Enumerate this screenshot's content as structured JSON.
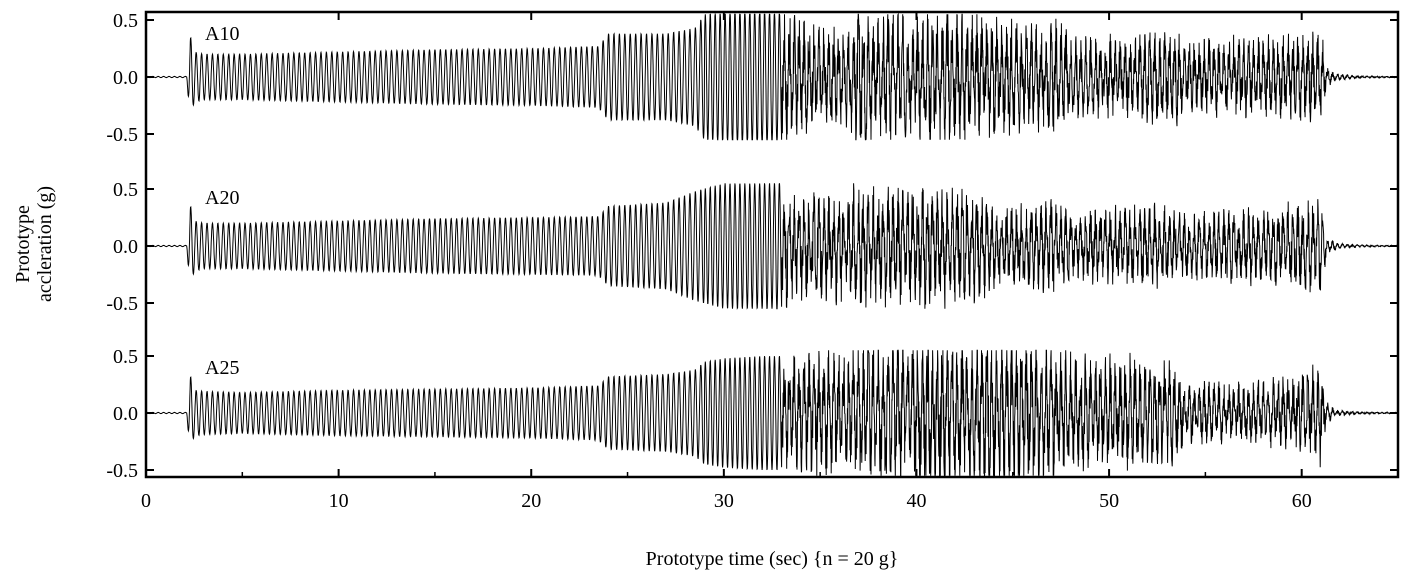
{
  "chart_data": {
    "type": "line",
    "xlabel": "Prototype time (sec) {n = 20 g}",
    "ylabel_lines": [
      "Prototype",
      "accleration (g)"
    ],
    "xlim": [
      0,
      65
    ],
    "x_ticks": [
      "0",
      "10",
      "20",
      "30",
      "40",
      "50",
      "60"
    ],
    "y_ticks": [
      "0.5",
      "0.0",
      "-0.5"
    ],
    "ylim_per_panel": [
      -0.55,
      0.55
    ],
    "grid": false,
    "series": [
      {
        "name": "A10",
        "envelope_t": [
          0,
          2.1,
          2.3,
          2.5,
          3,
          5,
          10,
          15,
          20,
          23.5,
          24,
          27,
          28.5,
          29,
          30,
          31,
          32,
          33,
          33.5,
          34,
          35,
          36.5,
          37,
          38,
          39,
          40,
          41,
          42,
          43,
          44,
          45,
          46,
          47,
          47.5,
          48,
          50,
          52,
          53.5,
          54,
          56,
          58,
          60,
          61,
          61.3,
          61.8,
          63,
          65
        ],
        "envelope_amp": [
          0.005,
          0.005,
          0.36,
          0.22,
          0.2,
          0.2,
          0.22,
          0.24,
          0.25,
          0.27,
          0.38,
          0.38,
          0.43,
          0.55,
          0.58,
          0.6,
          0.6,
          0.58,
          0.7,
          0.52,
          0.48,
          0.48,
          0.7,
          0.58,
          0.6,
          0.58,
          0.65,
          0.62,
          0.58,
          0.55,
          0.55,
          0.5,
          0.5,
          0.55,
          0.38,
          0.38,
          0.42,
          0.44,
          0.33,
          0.38,
          0.38,
          0.42,
          0.45,
          0.1,
          0.03,
          0.01,
          0.005
        ]
      },
      {
        "name": "A20",
        "envelope_t": [
          0,
          2.1,
          2.3,
          2.5,
          3,
          5,
          10,
          15,
          20,
          23.5,
          24,
          27,
          28.5,
          30,
          32,
          33,
          33.5,
          34,
          35,
          36.5,
          37,
          38,
          39,
          40,
          41,
          42,
          43,
          44,
          45,
          46,
          47,
          48,
          50,
          52,
          53.5,
          54,
          56,
          57,
          58,
          60,
          61,
          61.3,
          61.8,
          63,
          65
        ],
        "envelope_amp": [
          0.005,
          0.005,
          0.36,
          0.22,
          0.2,
          0.2,
          0.22,
          0.24,
          0.25,
          0.26,
          0.35,
          0.38,
          0.48,
          0.55,
          0.55,
          0.56,
          0.58,
          0.5,
          0.5,
          0.55,
          0.58,
          0.55,
          0.55,
          0.56,
          0.6,
          0.55,
          0.52,
          0.45,
          0.38,
          0.4,
          0.45,
          0.35,
          0.38,
          0.4,
          0.35,
          0.3,
          0.35,
          0.38,
          0.35,
          0.42,
          0.45,
          0.1,
          0.03,
          0.01,
          0.005
        ]
      },
      {
        "name": "A25",
        "envelope_t": [
          0,
          2.1,
          2.3,
          2.5,
          3,
          5,
          10,
          15,
          20,
          23.5,
          24,
          27,
          28.5,
          29,
          30,
          32,
          33,
          33.5,
          35,
          36.5,
          37,
          38,
          39,
          40,
          41,
          42,
          43,
          44,
          45,
          46,
          47,
          48,
          49,
          50,
          52,
          53.5,
          54,
          56,
          58,
          60,
          61,
          61.3,
          61.8,
          63,
          65
        ],
        "envelope_amp": [
          0.005,
          0.005,
          0.33,
          0.2,
          0.19,
          0.18,
          0.2,
          0.21,
          0.22,
          0.24,
          0.32,
          0.34,
          0.38,
          0.45,
          0.48,
          0.5,
          0.5,
          0.55,
          0.6,
          0.65,
          0.7,
          0.7,
          0.72,
          0.72,
          0.75,
          0.78,
          0.8,
          0.8,
          0.75,
          0.7,
          0.62,
          0.58,
          0.55,
          0.55,
          0.52,
          0.5,
          0.3,
          0.28,
          0.3,
          0.4,
          0.48,
          0.1,
          0.03,
          0.01,
          0.005
        ]
      }
    ]
  }
}
